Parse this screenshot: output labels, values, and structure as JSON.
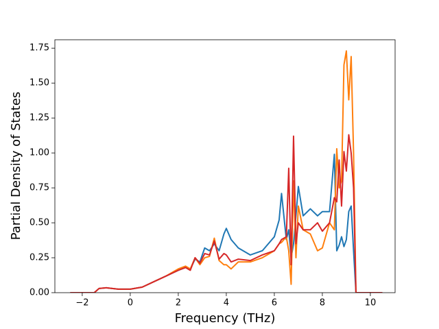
{
  "chart_data": {
    "type": "line",
    "x_label": "Frequency (THz)",
    "y_label": "Partial Density of States",
    "x": [
      -2.5,
      -1.5,
      -1.3,
      -1.0,
      -0.5,
      0,
      0.5,
      1,
      1.5,
      2,
      2.3,
      2.5,
      2.7,
      2.9,
      3.1,
      3.3,
      3.5,
      3.7,
      3.9,
      4.0,
      4.2,
      4.5,
      5.0,
      5.5,
      6.0,
      6.2,
      6.3,
      6.5,
      6.6,
      6.7,
      6.8,
      6.9,
      7.0,
      7.2,
      7.5,
      7.8,
      8.0,
      8.3,
      8.5,
      8.6,
      8.7,
      8.8,
      8.9,
      9.0,
      9.1,
      9.2,
      9.3,
      9.4,
      9.5,
      10.5
    ],
    "series": [
      {
        "color": "#1f77b4",
        "values": [
          0,
          0,
          0.03,
          0.035,
          0.025,
          0.025,
          0.04,
          0.08,
          0.12,
          0.16,
          0.18,
          0.17,
          0.24,
          0.22,
          0.32,
          0.3,
          0.35,
          0.3,
          0.42,
          0.46,
          0.38,
          0.32,
          0.27,
          0.3,
          0.4,
          0.52,
          0.71,
          0.38,
          0.45,
          0.25,
          0.35,
          0.55,
          0.76,
          0.55,
          0.6,
          0.55,
          0.58,
          0.58,
          0.99,
          0.3,
          0.34,
          0.4,
          0.33,
          0.38,
          0.58,
          0.62,
          0.3,
          0,
          0,
          0
        ]
      },
      {
        "color": "#ff7f0e",
        "values": [
          0,
          0,
          0.03,
          0.035,
          0.025,
          0.025,
          0.04,
          0.08,
          0.12,
          0.17,
          0.19,
          0.17,
          0.25,
          0.2,
          0.25,
          0.26,
          0.39,
          0.23,
          0.2,
          0.2,
          0.17,
          0.22,
          0.22,
          0.25,
          0.3,
          0.35,
          0.36,
          0.4,
          0.3,
          0.06,
          0.8,
          0.25,
          0.62,
          0.45,
          0.42,
          0.3,
          0.32,
          0.5,
          0.45,
          1.03,
          0.75,
          0.8,
          1.63,
          1.73,
          1.38,
          1.69,
          1.0,
          0,
          0,
          0
        ]
      },
      {
        "color": "#d62728",
        "values": [
          0,
          0,
          0.03,
          0.035,
          0.025,
          0.025,
          0.04,
          0.08,
          0.12,
          0.16,
          0.18,
          0.16,
          0.25,
          0.21,
          0.28,
          0.27,
          0.37,
          0.24,
          0.28,
          0.27,
          0.22,
          0.24,
          0.23,
          0.27,
          0.3,
          0.35,
          0.38,
          0.4,
          0.89,
          0.2,
          1.12,
          0.35,
          0.5,
          0.45,
          0.45,
          0.5,
          0.44,
          0.5,
          0.68,
          0.65,
          0.95,
          0.62,
          1.01,
          0.87,
          1.13,
          1.0,
          0.75,
          0,
          0,
          0
        ]
      }
    ],
    "xlim": [
      -3.14,
      11.03
    ],
    "ylim": [
      0,
      1.81
    ],
    "xticks": [
      {
        "value": -2,
        "label": "−2"
      },
      0,
      2,
      4,
      6,
      8,
      10
    ],
    "yticks": [
      {
        "value": 0,
        "label": "0.00"
      },
      {
        "value": 0.25,
        "label": "0.25"
      },
      {
        "value": 0.5,
        "label": "0.50"
      },
      {
        "value": 0.75,
        "label": "0.75"
      },
      {
        "value": 1,
        "label": "1.00"
      },
      {
        "value": 1.25,
        "label": "1.25"
      },
      {
        "value": 1.5,
        "label": "1.50"
      },
      {
        "value": 1.75,
        "label": "1.75"
      }
    ],
    "grid": false
  }
}
